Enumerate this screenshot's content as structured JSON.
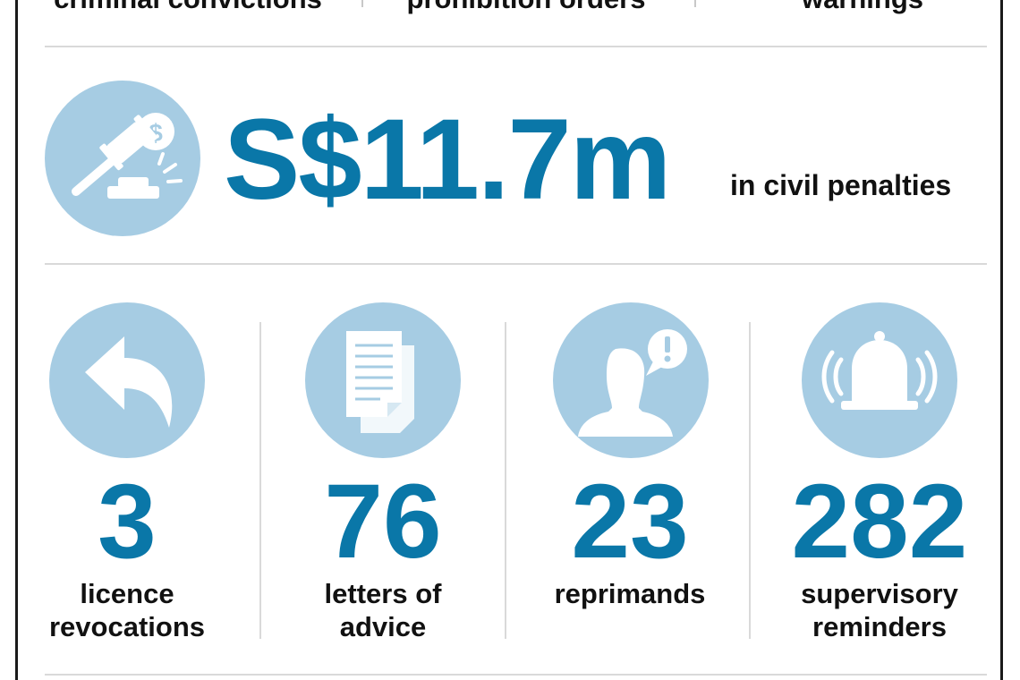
{
  "top_row": [
    {
      "label": "criminal convictions"
    },
    {
      "label": "prohibition orders"
    },
    {
      "label": "warnings"
    }
  ],
  "penalty": {
    "amount": "S$11.7m",
    "caption": "in civil penalties",
    "icon": "gavel-money-icon"
  },
  "stats": [
    {
      "value": "3",
      "caption_line1": "licence",
      "caption_line2": "revocations",
      "icon": "undo-arrow-icon"
    },
    {
      "value": "76",
      "caption_line1": "letters of",
      "caption_line2": "advice",
      "icon": "document-icon"
    },
    {
      "value": "23",
      "caption_line1": "reprimands",
      "caption_line2": "",
      "icon": "person-alert-icon"
    },
    {
      "value": "282",
      "caption_line1": "supervisory",
      "caption_line2": "reminders",
      "icon": "bell-icon"
    }
  ],
  "colors": {
    "accent": "#0a77a8",
    "icon_circle": "#a6cce3",
    "divider": "#d9d9d9"
  }
}
